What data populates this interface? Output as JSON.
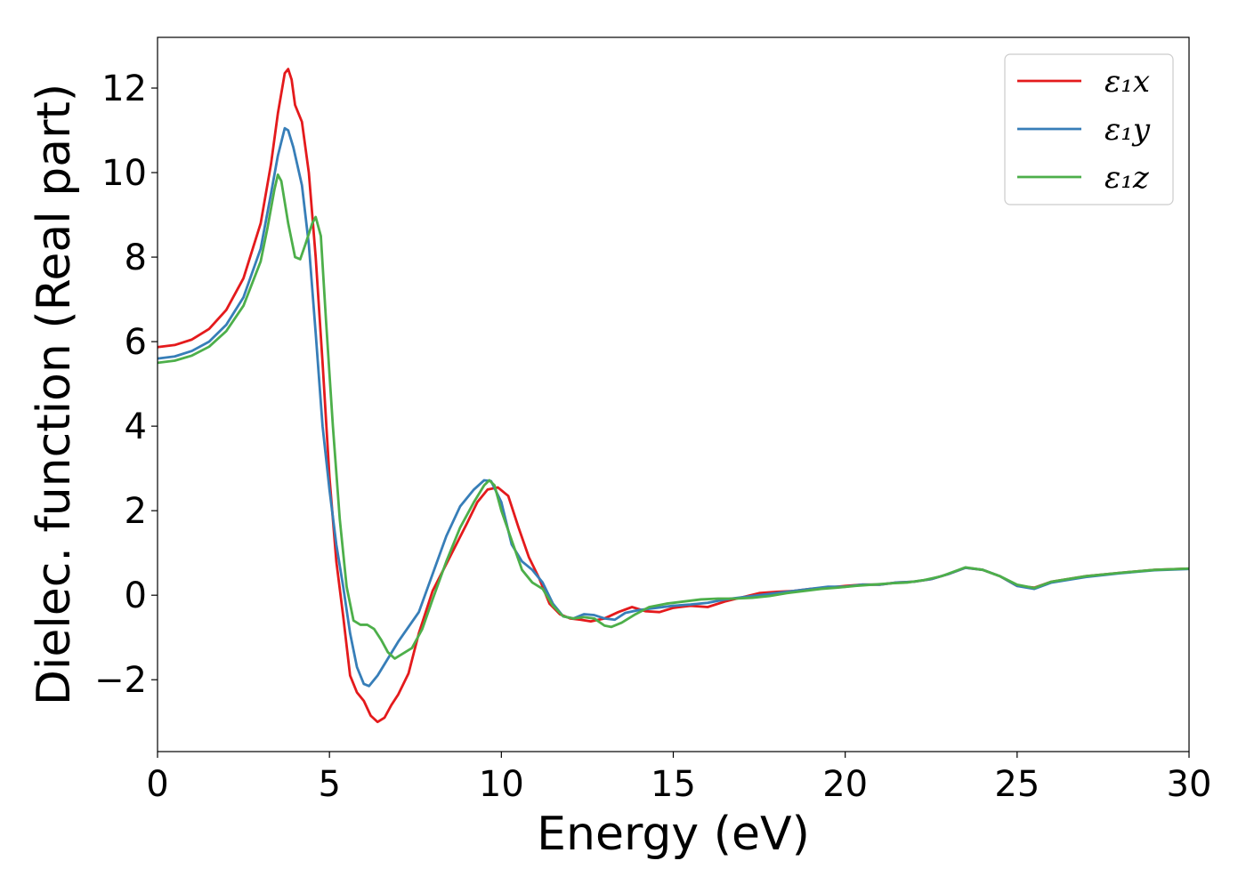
{
  "chart_data": {
    "type": "line",
    "xlabel": "Energy (eV)",
    "ylabel": "Dielec. function (Real part)",
    "xlim": [
      0,
      30
    ],
    "ylim": [
      -3.7,
      13.2
    ],
    "x_ticks": [
      0,
      5,
      10,
      15,
      20,
      25,
      30
    ],
    "x_tick_labels": [
      "0",
      "5",
      "10",
      "15",
      "20",
      "25",
      "30"
    ],
    "y_ticks": [
      -2,
      0,
      2,
      4,
      6,
      8,
      10,
      12
    ],
    "y_tick_labels": [
      "−2",
      "0",
      "2",
      "4",
      "6",
      "8",
      "10",
      "12"
    ],
    "grid": false,
    "legend_position": "top-right",
    "series": [
      {
        "name": "ε₁x",
        "color": "#e41a1c",
        "points": [
          [
            0,
            5.87
          ],
          [
            0.5,
            5.92
          ],
          [
            1,
            6.05
          ],
          [
            1.5,
            6.3
          ],
          [
            2,
            6.75
          ],
          [
            2.5,
            7.5
          ],
          [
            3,
            8.8
          ],
          [
            3.3,
            10.2
          ],
          [
            3.5,
            11.4
          ],
          [
            3.7,
            12.35
          ],
          [
            3.8,
            12.45
          ],
          [
            3.9,
            12.2
          ],
          [
            4.0,
            11.6
          ],
          [
            4.2,
            11.2
          ],
          [
            4.4,
            10.0
          ],
          [
            4.6,
            8.0
          ],
          [
            4.8,
            5.5
          ],
          [
            5,
            2.8
          ],
          [
            5.2,
            0.8
          ],
          [
            5.4,
            -0.5
          ],
          [
            5.6,
            -1.9
          ],
          [
            5.8,
            -2.3
          ],
          [
            6.0,
            -2.5
          ],
          [
            6.2,
            -2.85
          ],
          [
            6.4,
            -3.0
          ],
          [
            6.6,
            -2.9
          ],
          [
            6.8,
            -2.6
          ],
          [
            7.0,
            -2.35
          ],
          [
            7.3,
            -1.85
          ],
          [
            7.6,
            -0.9
          ],
          [
            8.0,
            0.1
          ],
          [
            8.5,
            0.9
          ],
          [
            9.0,
            1.7
          ],
          [
            9.3,
            2.2
          ],
          [
            9.6,
            2.5
          ],
          [
            9.9,
            2.55
          ],
          [
            10.2,
            2.35
          ],
          [
            10.5,
            1.6
          ],
          [
            10.8,
            0.9
          ],
          [
            11.1,
            0.4
          ],
          [
            11.4,
            -0.2
          ],
          [
            11.7,
            -0.45
          ],
          [
            12.0,
            -0.55
          ],
          [
            12.3,
            -0.58
          ],
          [
            12.6,
            -0.62
          ],
          [
            13.0,
            -0.55
          ],
          [
            13.4,
            -0.4
          ],
          [
            13.8,
            -0.28
          ],
          [
            14.2,
            -0.38
          ],
          [
            14.6,
            -0.4
          ],
          [
            15.0,
            -0.3
          ],
          [
            15.5,
            -0.25
          ],
          [
            16.0,
            -0.28
          ],
          [
            16.5,
            -0.15
          ],
          [
            17.0,
            -0.05
          ],
          [
            17.5,
            0.05
          ],
          [
            18.0,
            0.08
          ],
          [
            18.5,
            0.1
          ],
          [
            19.0,
            0.15
          ],
          [
            19.5,
            0.18
          ],
          [
            20.0,
            0.22
          ],
          [
            20.5,
            0.25
          ],
          [
            21.0,
            0.25
          ],
          [
            21.5,
            0.3
          ],
          [
            22.0,
            0.32
          ],
          [
            22.5,
            0.38
          ],
          [
            23.0,
            0.5
          ],
          [
            23.5,
            0.65
          ],
          [
            24.0,
            0.6
          ],
          [
            24.5,
            0.45
          ],
          [
            25.0,
            0.22
          ],
          [
            25.5,
            0.18
          ],
          [
            26.0,
            0.32
          ],
          [
            27.0,
            0.45
          ],
          [
            28.0,
            0.53
          ],
          [
            29.0,
            0.6
          ],
          [
            30.0,
            0.63
          ]
        ]
      },
      {
        "name": "ε₁y",
        "color": "#377eb8",
        "points": [
          [
            0,
            5.6
          ],
          [
            0.5,
            5.65
          ],
          [
            1,
            5.78
          ],
          [
            1.5,
            6.0
          ],
          [
            2,
            6.4
          ],
          [
            2.5,
            7.05
          ],
          [
            3,
            8.2
          ],
          [
            3.3,
            9.5
          ],
          [
            3.5,
            10.4
          ],
          [
            3.7,
            11.05
          ],
          [
            3.8,
            11.0
          ],
          [
            3.95,
            10.6
          ],
          [
            4.2,
            9.7
          ],
          [
            4.4,
            8.3
          ],
          [
            4.6,
            6.2
          ],
          [
            4.8,
            4.0
          ],
          [
            5.0,
            2.5
          ],
          [
            5.2,
            1.2
          ],
          [
            5.4,
            0.2
          ],
          [
            5.6,
            -0.9
          ],
          [
            5.8,
            -1.7
          ],
          [
            6.0,
            -2.1
          ],
          [
            6.15,
            -2.15
          ],
          [
            6.4,
            -1.9
          ],
          [
            6.7,
            -1.5
          ],
          [
            7.0,
            -1.1
          ],
          [
            7.3,
            -0.75
          ],
          [
            7.6,
            -0.4
          ],
          [
            8.0,
            0.5
          ],
          [
            8.4,
            1.4
          ],
          [
            8.8,
            2.1
          ],
          [
            9.2,
            2.5
          ],
          [
            9.5,
            2.72
          ],
          [
            9.7,
            2.7
          ],
          [
            10.0,
            2.2
          ],
          [
            10.3,
            1.2
          ],
          [
            10.6,
            0.8
          ],
          [
            10.9,
            0.6
          ],
          [
            11.2,
            0.3
          ],
          [
            11.5,
            -0.2
          ],
          [
            11.8,
            -0.5
          ],
          [
            12.1,
            -0.55
          ],
          [
            12.4,
            -0.45
          ],
          [
            12.7,
            -0.47
          ],
          [
            13.0,
            -0.55
          ],
          [
            13.3,
            -0.58
          ],
          [
            13.6,
            -0.42
          ],
          [
            14.0,
            -0.35
          ],
          [
            14.5,
            -0.3
          ],
          [
            15.0,
            -0.25
          ],
          [
            15.5,
            -0.22
          ],
          [
            16.0,
            -0.18
          ],
          [
            16.5,
            -0.1
          ],
          [
            17.0,
            -0.05
          ],
          [
            17.5,
            0.0
          ],
          [
            18.0,
            0.05
          ],
          [
            18.5,
            0.1
          ],
          [
            19.0,
            0.15
          ],
          [
            19.5,
            0.2
          ],
          [
            20.0,
            0.2
          ],
          [
            20.5,
            0.25
          ],
          [
            21.0,
            0.25
          ],
          [
            21.5,
            0.3
          ],
          [
            22.0,
            0.32
          ],
          [
            22.5,
            0.38
          ],
          [
            23.0,
            0.5
          ],
          [
            23.5,
            0.65
          ],
          [
            24.0,
            0.6
          ],
          [
            24.5,
            0.45
          ],
          [
            25.0,
            0.22
          ],
          [
            25.5,
            0.15
          ],
          [
            26.0,
            0.3
          ],
          [
            27.0,
            0.43
          ],
          [
            28.0,
            0.52
          ],
          [
            29.0,
            0.59
          ],
          [
            30.0,
            0.62
          ]
        ]
      },
      {
        "name": "ε₁z",
        "color": "#4daf4a",
        "points": [
          [
            0,
            5.5
          ],
          [
            0.5,
            5.55
          ],
          [
            1,
            5.67
          ],
          [
            1.5,
            5.88
          ],
          [
            2,
            6.25
          ],
          [
            2.5,
            6.85
          ],
          [
            3,
            7.9
          ],
          [
            3.2,
            8.7
          ],
          [
            3.4,
            9.6
          ],
          [
            3.5,
            9.95
          ],
          [
            3.6,
            9.8
          ],
          [
            3.8,
            8.8
          ],
          [
            4.0,
            8.0
          ],
          [
            4.15,
            7.95
          ],
          [
            4.3,
            8.3
          ],
          [
            4.5,
            8.8
          ],
          [
            4.6,
            8.95
          ],
          [
            4.75,
            8.5
          ],
          [
            4.9,
            6.5
          ],
          [
            5.1,
            4.0
          ],
          [
            5.3,
            1.8
          ],
          [
            5.5,
            0.2
          ],
          [
            5.7,
            -0.6
          ],
          [
            5.9,
            -0.7
          ],
          [
            6.1,
            -0.7
          ],
          [
            6.3,
            -0.8
          ],
          [
            6.5,
            -1.05
          ],
          [
            6.7,
            -1.35
          ],
          [
            6.9,
            -1.5
          ],
          [
            7.1,
            -1.4
          ],
          [
            7.4,
            -1.25
          ],
          [
            7.7,
            -0.8
          ],
          [
            8.0,
            -0.1
          ],
          [
            8.4,
            0.8
          ],
          [
            8.8,
            1.6
          ],
          [
            9.2,
            2.2
          ],
          [
            9.5,
            2.6
          ],
          [
            9.65,
            2.72
          ],
          [
            9.8,
            2.6
          ],
          [
            10.0,
            2.0
          ],
          [
            10.3,
            1.3
          ],
          [
            10.6,
            0.6
          ],
          [
            10.9,
            0.3
          ],
          [
            11.2,
            0.15
          ],
          [
            11.5,
            -0.25
          ],
          [
            11.8,
            -0.5
          ],
          [
            12.1,
            -0.55
          ],
          [
            12.4,
            -0.52
          ],
          [
            12.7,
            -0.55
          ],
          [
            13.0,
            -0.72
          ],
          [
            13.2,
            -0.75
          ],
          [
            13.5,
            -0.65
          ],
          [
            13.9,
            -0.45
          ],
          [
            14.3,
            -0.28
          ],
          [
            14.8,
            -0.2
          ],
          [
            15.3,
            -0.15
          ],
          [
            15.8,
            -0.1
          ],
          [
            16.3,
            -0.08
          ],
          [
            16.8,
            -0.08
          ],
          [
            17.3,
            -0.06
          ],
          [
            17.8,
            -0.02
          ],
          [
            18.3,
            0.05
          ],
          [
            18.8,
            0.1
          ],
          [
            19.3,
            0.15
          ],
          [
            19.8,
            0.18
          ],
          [
            20.3,
            0.22
          ],
          [
            20.8,
            0.25
          ],
          [
            21.3,
            0.28
          ],
          [
            21.8,
            0.3
          ],
          [
            22.3,
            0.36
          ],
          [
            22.8,
            0.45
          ],
          [
            23.3,
            0.6
          ],
          [
            23.5,
            0.66
          ],
          [
            24.0,
            0.6
          ],
          [
            24.5,
            0.45
          ],
          [
            25.0,
            0.25
          ],
          [
            25.5,
            0.17
          ],
          [
            26.0,
            0.32
          ],
          [
            27.0,
            0.45
          ],
          [
            28.0,
            0.53
          ],
          [
            29.0,
            0.6
          ],
          [
            30.0,
            0.63
          ]
        ]
      }
    ]
  }
}
